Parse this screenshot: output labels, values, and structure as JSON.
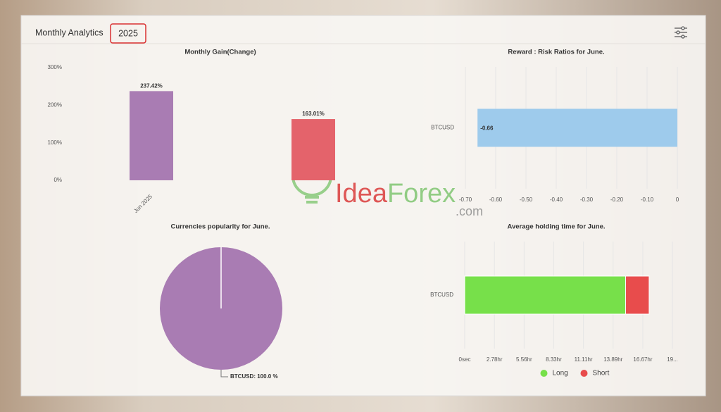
{
  "header": {
    "title": "Monthly Analytics",
    "year": "2025"
  },
  "watermark": {
    "brand": [
      "Idea",
      "Forex"
    ],
    "domain": ".com"
  },
  "chart_data": [
    {
      "type": "bar",
      "title": "Monthly Gain(Change)",
      "categories": [
        "Jun 2025",
        null
      ],
      "values": [
        237.42,
        163.01
      ],
      "value_labels": [
        "237.42%",
        "163.01%"
      ],
      "colors": [
        "#a97cb3",
        "#e4636b"
      ],
      "ylim": [
        0,
        300
      ],
      "yticks": [
        {
          "value": 0,
          "label": "0%"
        },
        {
          "value": 100,
          "label": "100%"
        },
        {
          "value": 200,
          "label": "200%"
        },
        {
          "value": 300,
          "label": "300%"
        }
      ],
      "grid": false
    },
    {
      "type": "bar",
      "orientation": "horizontal",
      "title": "Reward : Risk Ratios for June.",
      "categories": [
        "BTCUSD"
      ],
      "values": [
        -0.66
      ],
      "value_labels": [
        "-0.66"
      ],
      "color": "#9ecbec",
      "xlim": [
        -0.7,
        0
      ],
      "xticks": [
        {
          "value": -0.7,
          "label": "-0.70"
        },
        {
          "value": -0.6,
          "label": "-0.60"
        },
        {
          "value": -0.5,
          "label": "-0.50"
        },
        {
          "value": -0.4,
          "label": "-0.40"
        },
        {
          "value": -0.3,
          "label": "-0.30"
        },
        {
          "value": -0.2,
          "label": "-0.20"
        },
        {
          "value": -0.1,
          "label": "-0.10"
        },
        0
      ],
      "grid": true
    },
    {
      "type": "pie",
      "title": "Currencies popularity for June.",
      "categories": [
        "BTCUSD"
      ],
      "values": [
        100
      ],
      "value_labels": [
        "BTCUSD: 100.0 %"
      ],
      "colors": [
        "#a97cb3"
      ]
    },
    {
      "type": "bar",
      "orientation": "horizontal",
      "stacked": true,
      "title": "Average holding time for June.",
      "categories": [
        "BTCUSD"
      ],
      "series": [
        {
          "name": "Long",
          "color": "#77e04a",
          "values": [
            15.06
          ]
        },
        {
          "name": "Short",
          "color": "#e84c4c",
          "values": [
            2.2
          ]
        }
      ],
      "xlim": [
        0,
        19.44
      ],
      "xticks": [
        {
          "value": 0,
          "label": "0sec"
        },
        {
          "value": 2.78,
          "label": "2.78hr"
        },
        {
          "value": 5.56,
          "label": "5.56hr"
        },
        {
          "value": 8.33,
          "label": "8.33hr"
        },
        {
          "value": 11.11,
          "label": "11.11hr"
        },
        {
          "value": 13.89,
          "label": "13.89hr"
        },
        {
          "value": 16.67,
          "label": "16.67hr"
        },
        {
          "value": 19.44,
          "label": "19..."
        }
      ],
      "grid": true,
      "legend": "bottom"
    }
  ]
}
